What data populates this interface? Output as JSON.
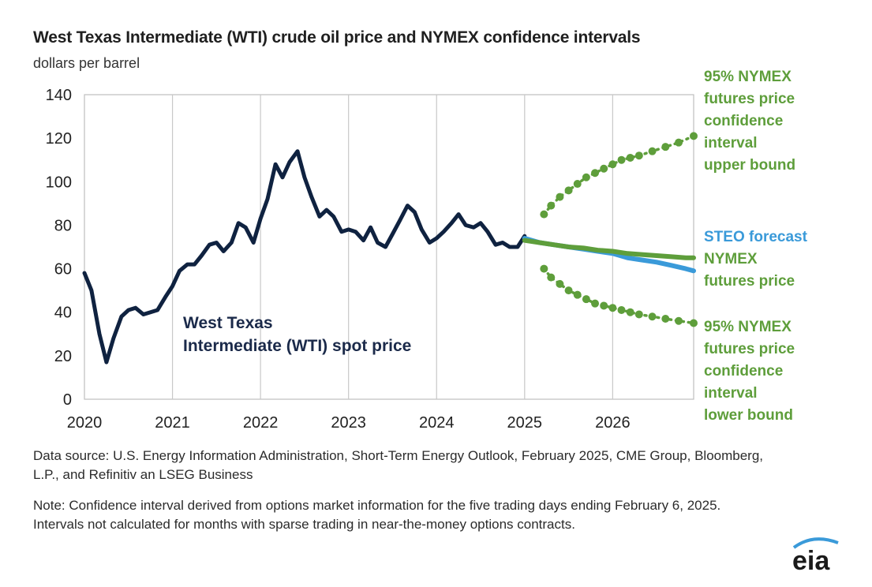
{
  "chart_data": {
    "type": "line",
    "title": "West Texas Intermediate (WTI) crude oil price and NYMEX confidence intervals",
    "subtitle": "dollars per barrel",
    "ylim": [
      0,
      140
    ],
    "yticks": [
      0,
      20,
      40,
      60,
      80,
      100,
      120,
      140
    ],
    "xlim": [
      2020,
      2026.92
    ],
    "xticks": [
      {
        "value": 2020,
        "label": "2020"
      },
      {
        "value": 2021,
        "label": "2021"
      },
      {
        "value": 2022,
        "label": "2022"
      },
      {
        "value": 2023,
        "label": "2023"
      },
      {
        "value": 2024,
        "label": "2024"
      },
      {
        "value": 2025,
        "label": "2025"
      },
      {
        "value": 2026,
        "label": "2026"
      }
    ],
    "grid": "vertical",
    "series": [
      {
        "name": "West Texas Intermediate (WTI) spot price",
        "color": "#0f2240",
        "style": "solid",
        "points": [
          [
            2020.0,
            58
          ],
          [
            2020.08,
            50
          ],
          [
            2020.17,
            30
          ],
          [
            2020.25,
            17
          ],
          [
            2020.33,
            28
          ],
          [
            2020.42,
            38
          ],
          [
            2020.5,
            41
          ],
          [
            2020.58,
            42
          ],
          [
            2020.67,
            39
          ],
          [
            2020.75,
            40
          ],
          [
            2020.83,
            41
          ],
          [
            2020.92,
            47
          ],
          [
            2021.0,
            52
          ],
          [
            2021.08,
            59
          ],
          [
            2021.17,
            62
          ],
          [
            2021.25,
            62
          ],
          [
            2021.33,
            66
          ],
          [
            2021.42,
            71
          ],
          [
            2021.5,
            72
          ],
          [
            2021.58,
            68
          ],
          [
            2021.67,
            72
          ],
          [
            2021.75,
            81
          ],
          [
            2021.83,
            79
          ],
          [
            2021.92,
            72
          ],
          [
            2022.0,
            83
          ],
          [
            2022.08,
            92
          ],
          [
            2022.17,
            108
          ],
          [
            2022.25,
            102
          ],
          [
            2022.33,
            109
          ],
          [
            2022.42,
            114
          ],
          [
            2022.5,
            102
          ],
          [
            2022.58,
            93
          ],
          [
            2022.67,
            84
          ],
          [
            2022.75,
            87
          ],
          [
            2022.83,
            84
          ],
          [
            2022.92,
            77
          ],
          [
            2023.0,
            78
          ],
          [
            2023.08,
            77
          ],
          [
            2023.17,
            73
          ],
          [
            2023.25,
            79
          ],
          [
            2023.33,
            72
          ],
          [
            2023.42,
            70
          ],
          [
            2023.5,
            76
          ],
          [
            2023.58,
            82
          ],
          [
            2023.67,
            89
          ],
          [
            2023.75,
            86
          ],
          [
            2023.83,
            78
          ],
          [
            2023.92,
            72
          ],
          [
            2024.0,
            74
          ],
          [
            2024.08,
            77
          ],
          [
            2024.17,
            81
          ],
          [
            2024.25,
            85
          ],
          [
            2024.33,
            80
          ],
          [
            2024.42,
            79
          ],
          [
            2024.5,
            81
          ],
          [
            2024.58,
            77
          ],
          [
            2024.67,
            71
          ],
          [
            2024.75,
            72
          ],
          [
            2024.83,
            70
          ],
          [
            2024.92,
            70
          ],
          [
            2025.0,
            75
          ]
        ]
      },
      {
        "name": "STEO forecast",
        "color": "#3a9ad9",
        "style": "solid",
        "points": [
          [
            2025.0,
            74
          ],
          [
            2025.17,
            72
          ],
          [
            2025.33,
            71
          ],
          [
            2025.5,
            70
          ],
          [
            2025.67,
            69
          ],
          [
            2025.83,
            68
          ],
          [
            2026.0,
            67
          ],
          [
            2026.17,
            65
          ],
          [
            2026.33,
            64
          ],
          [
            2026.5,
            63
          ],
          [
            2026.67,
            61.5
          ],
          [
            2026.83,
            60
          ],
          [
            2026.92,
            59
          ]
        ]
      },
      {
        "name": "NYMEX futures price",
        "color": "#5e9e3b",
        "style": "solid",
        "points": [
          [
            2025.0,
            73
          ],
          [
            2025.17,
            72
          ],
          [
            2025.33,
            71
          ],
          [
            2025.5,
            70
          ],
          [
            2025.67,
            69.5
          ],
          [
            2025.83,
            68.5
          ],
          [
            2026.0,
            68
          ],
          [
            2026.17,
            67
          ],
          [
            2026.33,
            66.5
          ],
          [
            2026.5,
            66
          ],
          [
            2026.67,
            65.5
          ],
          [
            2026.83,
            65
          ],
          [
            2026.92,
            65
          ]
        ]
      },
      {
        "name": "95% NYMEX futures price confidence interval upper bound",
        "color": "#5e9e3b",
        "style": "dotted",
        "points": [
          [
            2025.22,
            85
          ],
          [
            2025.3,
            89
          ],
          [
            2025.4,
            93
          ],
          [
            2025.5,
            96
          ],
          [
            2025.6,
            99
          ],
          [
            2025.7,
            102
          ],
          [
            2025.8,
            104
          ],
          [
            2025.9,
            106
          ],
          [
            2026.0,
            108
          ],
          [
            2026.1,
            110
          ],
          [
            2026.2,
            111
          ],
          [
            2026.3,
            112
          ],
          [
            2026.45,
            114
          ],
          [
            2026.6,
            116
          ],
          [
            2026.75,
            118
          ],
          [
            2026.92,
            121
          ]
        ]
      },
      {
        "name": "95% NYMEX futures price confidence interval lower bound",
        "color": "#5e9e3b",
        "style": "dotted",
        "points": [
          [
            2025.22,
            60
          ],
          [
            2025.3,
            56
          ],
          [
            2025.4,
            53
          ],
          [
            2025.5,
            50
          ],
          [
            2025.6,
            48
          ],
          [
            2025.7,
            46
          ],
          [
            2025.8,
            44
          ],
          [
            2025.9,
            43
          ],
          [
            2026.0,
            42
          ],
          [
            2026.1,
            41
          ],
          [
            2026.2,
            40
          ],
          [
            2026.3,
            39
          ],
          [
            2026.45,
            38
          ],
          [
            2026.6,
            37
          ],
          [
            2026.75,
            36
          ],
          [
            2026.92,
            35
          ]
        ]
      }
    ],
    "annotations": {
      "upper": [
        "95% NYMEX",
        "futures price",
        "confidence",
        "interval",
        "upper bound"
      ],
      "steo": [
        "STEO forecast"
      ],
      "nymex": [
        "NYMEX",
        "futures price"
      ],
      "lower": [
        "95% NYMEX",
        "futures price",
        "confidence",
        "interval",
        "lower bound"
      ],
      "spot": [
        "West Texas",
        "Intermediate (WTI) spot price"
      ]
    }
  },
  "footer": {
    "source": "Data source: U.S. Energy Information Administration, Short-Term Energy Outlook, February 2025, CME Group, Bloomberg, L.P., and Refinitiv an LSEG Business",
    "note": "Note: Confidence interval derived from options market information for the five trading days ending February 6, 2025. Intervals not calculated for months with sparse trading in near-the-money options contracts."
  },
  "logo": {
    "text": "eia",
    "color": "#1a1a1a",
    "accent": "#3a9ad9"
  }
}
